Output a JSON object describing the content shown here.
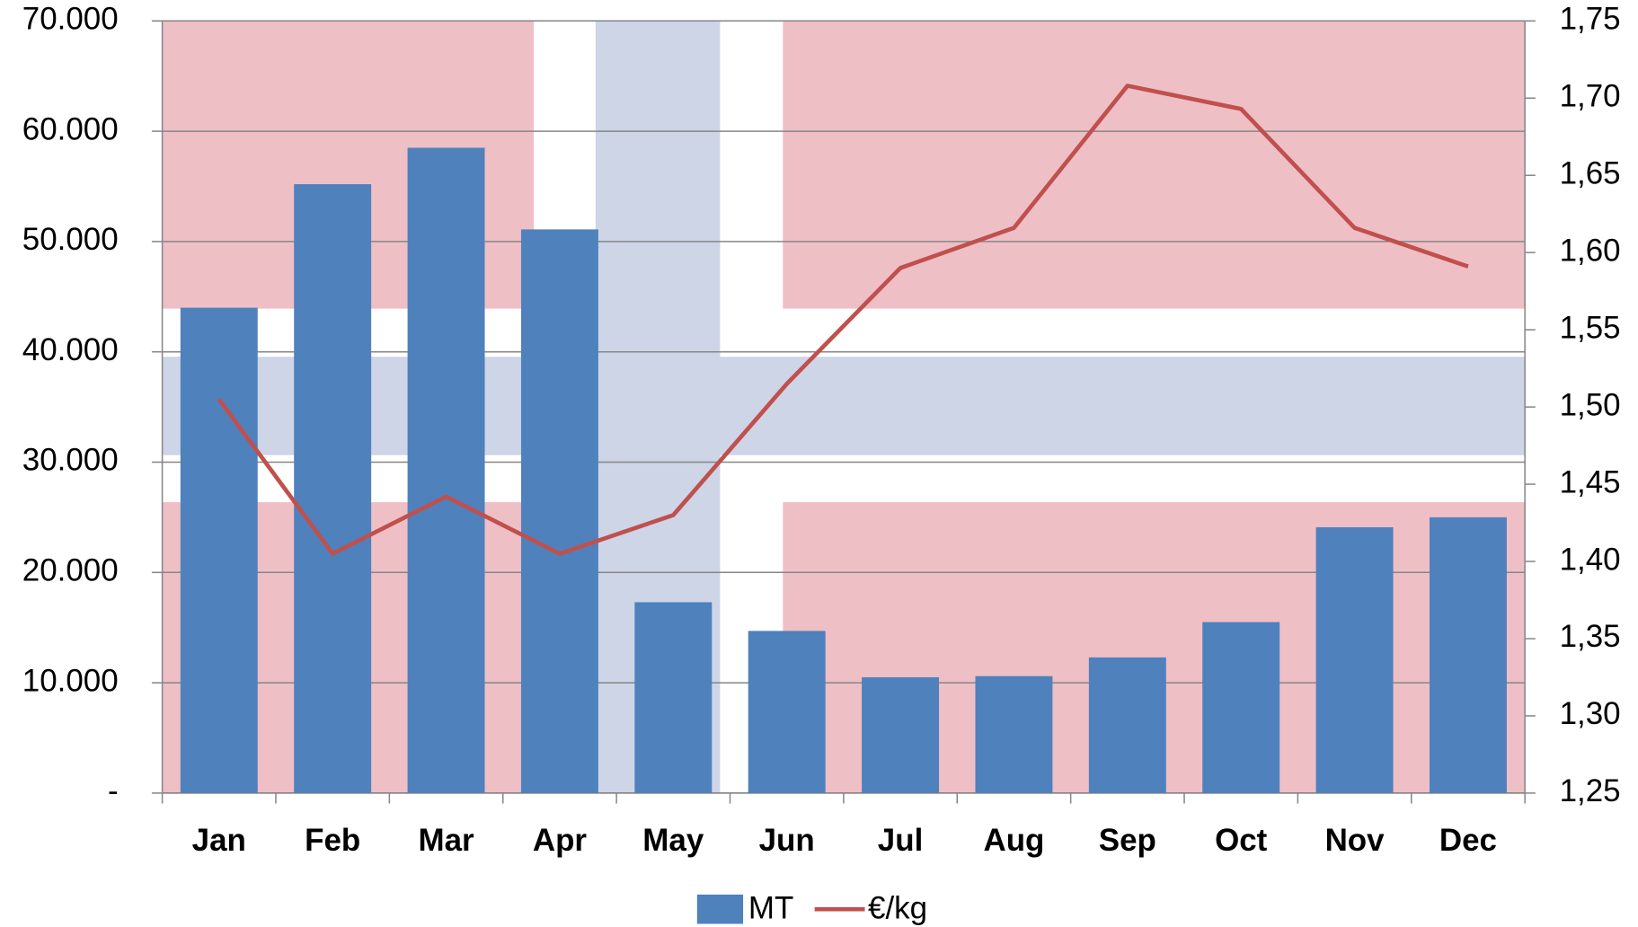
{
  "chart_data": {
    "type": "bar-line",
    "categories": [
      "Jan",
      "Feb",
      "Mar",
      "Apr",
      "May",
      "Jun",
      "Jul",
      "Aug",
      "Sep",
      "Oct",
      "Nov",
      "Dec"
    ],
    "series": [
      {
        "name": "MT",
        "color": "#4f81bd",
        "type": "bar",
        "values": [
          44000,
          55200,
          58500,
          51100,
          17300,
          14700,
          10500,
          10600,
          12300,
          15500,
          24100,
          25000
        ]
      },
      {
        "name": "€/kg",
        "color": "#c0504d",
        "type": "line",
        "axis": "y2",
        "values": [
          1.505,
          1.405,
          1.442,
          1.405,
          1.43,
          1.515,
          1.59,
          1.616,
          1.708,
          1.693,
          1.616,
          1.591
        ]
      }
    ],
    "ylim": [
      0,
      70000
    ],
    "yticks": [
      {
        "value": 0,
        "label": "-"
      },
      {
        "value": 10000,
        "label": "10.000"
      },
      {
        "value": 20000,
        "label": "20.000"
      },
      {
        "value": 30000,
        "label": "30.000"
      },
      {
        "value": 40000,
        "label": "40.000"
      },
      {
        "value": 50000,
        "label": "50.000"
      },
      {
        "value": 60000,
        "label": "60.000"
      },
      {
        "value": 70000,
        "label": "70.000"
      }
    ],
    "y2lim": [
      1.25,
      1.75
    ],
    "y2ticks": [
      {
        "value": 1.25,
        "label": "1,25"
      },
      {
        "value": 1.3,
        "label": "1,30"
      },
      {
        "value": 1.35,
        "label": "1,35"
      },
      {
        "value": 1.4,
        "label": "1,40"
      },
      {
        "value": 1.45,
        "label": "1,45"
      },
      {
        "value": 1.5,
        "label": "1,50"
      },
      {
        "value": 1.55,
        "label": "1,55"
      },
      {
        "value": 1.6,
        "label": "1,60"
      },
      {
        "value": 1.65,
        "label": "1,65"
      },
      {
        "value": 1.7,
        "label": "1,70"
      },
      {
        "value": 1.75,
        "label": "1,75"
      }
    ],
    "grid": true,
    "legend": "bottom"
  }
}
